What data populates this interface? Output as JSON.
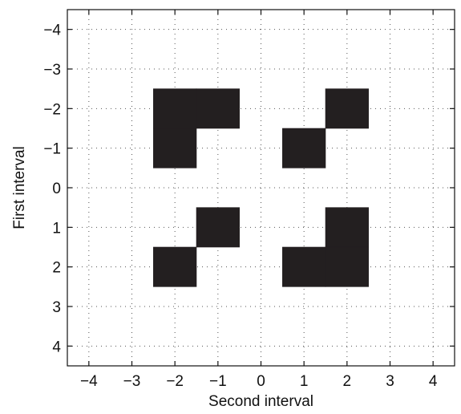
{
  "chart_data": {
    "type": "heatmap",
    "xlabel": "Second interval",
    "ylabel": "First interval",
    "xlim": [
      -4.5,
      4.5
    ],
    "ylim": [
      -4.5,
      4.5
    ],
    "y_reversed": true,
    "grid": true,
    "grid_style": "dotted",
    "x_ticks": [
      -4,
      -3,
      -2,
      -1,
      0,
      1,
      2,
      3,
      4
    ],
    "y_ticks": [
      -4,
      -3,
      -2,
      -1,
      0,
      1,
      2,
      3,
      4
    ],
    "x_tick_labels": [
      "−4",
      "−3",
      "−2",
      "−1",
      "0",
      "1",
      "2",
      "3",
      "4"
    ],
    "y_tick_labels": [
      "−4",
      "−3",
      "−2",
      "−1",
      "0",
      "1",
      "2",
      "3",
      "4"
    ],
    "cell_color": "#231f20",
    "filled_cells": [
      {
        "x": -2,
        "y": -2
      },
      {
        "x": -1,
        "y": -2
      },
      {
        "x": -2,
        "y": -1
      },
      {
        "x": 2,
        "y": -2
      },
      {
        "x": 1,
        "y": -1
      },
      {
        "x": -1,
        "y": 1
      },
      {
        "x": -2,
        "y": 2
      },
      {
        "x": 2,
        "y": 1
      },
      {
        "x": 1,
        "y": 2
      },
      {
        "x": 2,
        "y": 2
      }
    ]
  }
}
